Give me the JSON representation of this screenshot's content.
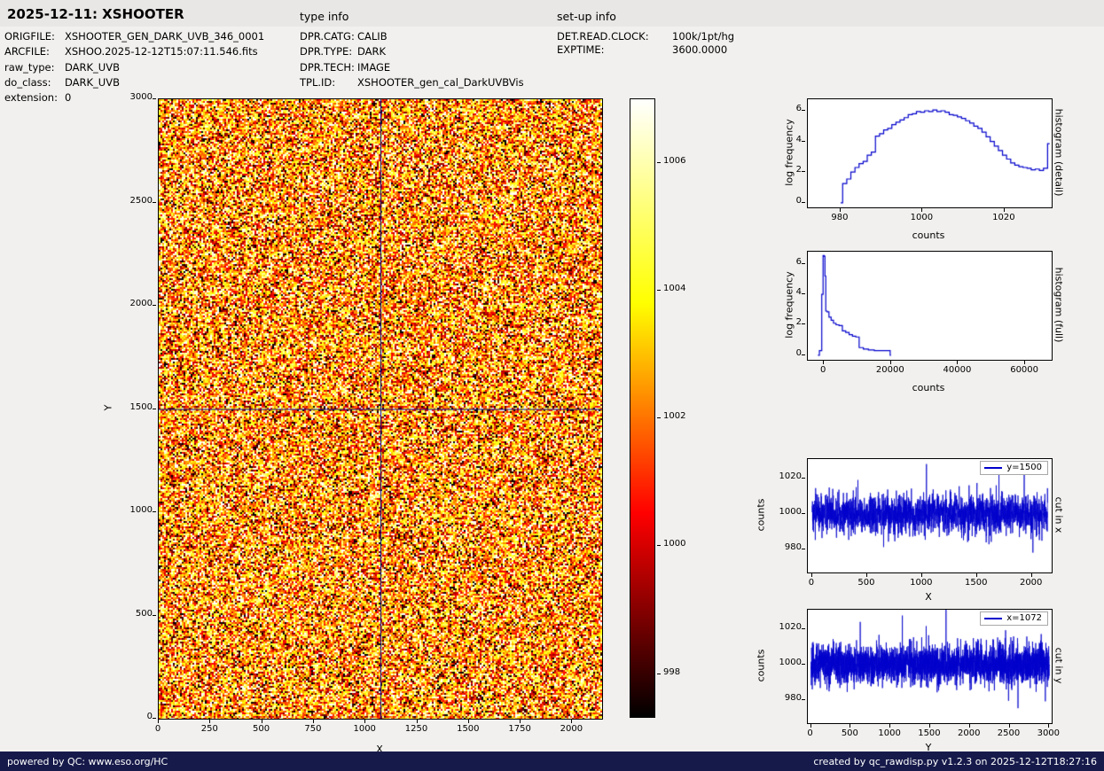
{
  "header": {
    "title": "2025-12-11: XSHOOTER",
    "type_info_label": "type info",
    "setup_info_label": "set-up info"
  },
  "meta_left": {
    "rows": [
      {
        "label": "ORIGFILE:",
        "value": "XSHOOTER_GEN_DARK_UVB_346_0001"
      },
      {
        "label": "ARCFILE:",
        "value": "XSHOO.2025-12-12T15:07:11.546.fits"
      },
      {
        "label": "raw_type:",
        "value": "DARK_UVB"
      },
      {
        "label": "do_class:",
        "value": "DARK_UVB"
      },
      {
        "label": "extension:",
        "value": "0"
      }
    ]
  },
  "meta_type": {
    "rows": [
      {
        "label": "DPR.CATG:",
        "value": "CALIB"
      },
      {
        "label": "DPR.TYPE:",
        "value": "DARK"
      },
      {
        "label": "DPR.TECH:",
        "value": "IMAGE"
      },
      {
        "label": "TPL.ID:",
        "value": "XSHOOTER_gen_cal_DarkUVBVis"
      }
    ]
  },
  "meta_setup": {
    "rows": [
      {
        "label": "DET.READ.CLOCK:",
        "value": "100k/1pt/hg"
      },
      {
        "label": "EXPTIME:",
        "value": "3600.0000"
      }
    ]
  },
  "footer": {
    "left": "powered by QC: www.eso.org/HC",
    "right": "created by qc_rawdisp.py v1.2.3 on 2025-12-12T18:27:16"
  },
  "chart_data": [
    {
      "id": "main-image",
      "type": "heatmap",
      "xlabel": "X",
      "ylabel": "Y",
      "x_range": [
        0,
        2144
      ],
      "y_range": [
        0,
        3000
      ],
      "x_ticks": [
        0,
        250,
        500,
        750,
        1000,
        1250,
        1500,
        1750,
        2000
      ],
      "y_ticks": [
        0,
        500,
        1000,
        1500,
        2000,
        2500,
        3000
      ],
      "crosshair": {
        "x": 1072,
        "y": 1500
      },
      "colormap": "hot",
      "noise": {
        "mean_t": 0.55,
        "sigma_t": 0.3,
        "seed": 12345
      }
    },
    {
      "id": "colorbar",
      "type": "colorbar",
      "colormap": "hot",
      "ticks": [
        998,
        1000,
        1002,
        1004,
        1006
      ],
      "range": [
        997.3,
        1007.0
      ]
    },
    {
      "id": "hist-detail",
      "type": "line",
      "step": true,
      "color": "#0000cc",
      "xlabel": "counts",
      "ylabel": "log frequency",
      "side_label": "histogram (detail)",
      "x_range": [
        972,
        1031.5
      ],
      "y_range": [
        -0.3,
        6.75
      ],
      "x_ticks": [
        980,
        1000,
        1020
      ],
      "y_ticks": [
        0,
        2,
        4,
        6
      ],
      "x": [
        980,
        981,
        982,
        983,
        984,
        985,
        986,
        987,
        988,
        989,
        990,
        991,
        992,
        993,
        994,
        995,
        996,
        997,
        998,
        999,
        1000,
        1001,
        1002,
        1003,
        1004,
        1005,
        1006,
        1007,
        1008,
        1009,
        1010,
        1011,
        1012,
        1013,
        1014,
        1015,
        1016,
        1017,
        1018,
        1019,
        1020,
        1021,
        1022,
        1023,
        1024,
        1025,
        1026,
        1027,
        1028,
        1029,
        1030,
        1031
      ],
      "y": [
        0,
        1.25,
        1.55,
        2.0,
        2.3,
        2.55,
        2.7,
        3.1,
        3.3,
        4.35,
        4.5,
        4.75,
        4.85,
        5.1,
        5.25,
        5.4,
        5.55,
        5.75,
        5.8,
        5.95,
        5.9,
        6.0,
        5.95,
        6.05,
        5.95,
        6.0,
        5.9,
        5.75,
        5.7,
        5.6,
        5.5,
        5.35,
        5.2,
        5.0,
        4.85,
        4.6,
        4.3,
        4.0,
        3.7,
        3.4,
        3.1,
        2.85,
        2.6,
        2.45,
        2.35,
        2.3,
        2.25,
        2.15,
        2.2,
        2.1,
        2.25,
        3.85
      ]
    },
    {
      "id": "hist-full",
      "type": "line",
      "step": true,
      "color": "#0000cc",
      "xlabel": "counts",
      "ylabel": "log frequency",
      "side_label": "histogram (full)",
      "x_range": [
        -4800,
        67900
      ],
      "y_range": [
        -0.3,
        6.8
      ],
      "x_ticks": [
        0,
        20000,
        40000,
        60000
      ],
      "y_ticks": [
        0,
        2,
        4,
        6
      ],
      "x": [
        -1800,
        -900,
        -400,
        -100,
        200,
        400,
        700,
        1200,
        1800,
        2500,
        3200,
        4000,
        5000,
        6000,
        7000,
        8000,
        9000,
        10000,
        11000,
        12500,
        14000,
        16000,
        18000,
        19500,
        20000
      ],
      "y": [
        0,
        0.3,
        4.0,
        6.55,
        6.5,
        5.2,
        2.9,
        2.85,
        2.5,
        2.3,
        2.1,
        2.0,
        1.95,
        1.6,
        1.5,
        1.35,
        1.25,
        1.2,
        0.5,
        0.4,
        0.35,
        0.3,
        0.3,
        0.3,
        0
      ]
    },
    {
      "id": "cut-x",
      "type": "noise",
      "color": "#0000cc",
      "legend": "y=1500",
      "xlabel": "X",
      "ylabel": "counts",
      "side_label": "cut in x",
      "x_range": [
        -40,
        2180
      ],
      "y_range": [
        967,
        1031
      ],
      "x_ticks": [
        0,
        500,
        1000,
        1500,
        2000
      ],
      "y_ticks": [
        980,
        1000,
        1020
      ],
      "noise": {
        "n": 2144,
        "mean": 1000,
        "sigma": 5.5,
        "seed": 777,
        "spikes": [
          [
            400,
            12
          ],
          [
            650,
            -14
          ],
          [
            1040,
            30
          ],
          [
            1270,
            -17
          ],
          [
            1500,
            15
          ],
          [
            1700,
            12
          ],
          [
            1930,
            28
          ]
        ]
      }
    },
    {
      "id": "cut-y",
      "type": "noise",
      "color": "#0000cc",
      "legend": "x=1072",
      "xlabel": "Y",
      "ylabel": "counts",
      "side_label": "cut in y",
      "x_range": [
        -40,
        3030
      ],
      "y_range": [
        967,
        1031
      ],
      "x_ticks": [
        0,
        500,
        1000,
        1500,
        2000,
        2500,
        3000
      ],
      "y_ticks": [
        980,
        1000,
        1020
      ],
      "noise": {
        "n": 3000,
        "mean": 1000,
        "sigma": 5.5,
        "seed": 888,
        "spikes": [
          [
            620,
            14
          ],
          [
            900,
            -15
          ],
          [
            1150,
            32
          ],
          [
            1450,
            36
          ],
          [
            1700,
            30
          ],
          [
            2100,
            15
          ],
          [
            2350,
            18
          ],
          [
            2600,
            20
          ],
          [
            2870,
            -14
          ],
          [
            2950,
            -22
          ]
        ]
      }
    }
  ]
}
